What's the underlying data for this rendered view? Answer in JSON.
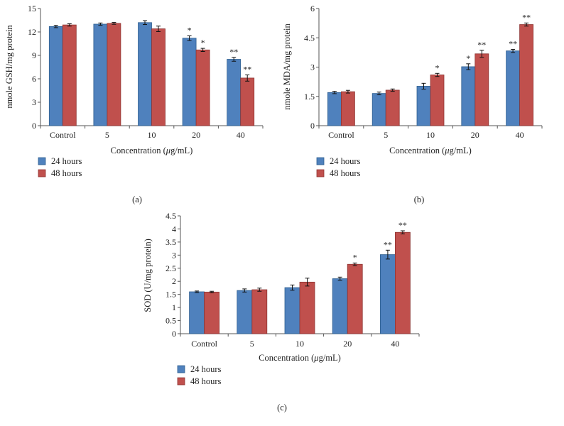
{
  "colors": {
    "s24": "#4f81bd",
    "s48": "#c0504d",
    "s24_edge": "#2f5f8f",
    "s48_edge": "#8e3331",
    "axis": "#555555"
  },
  "chart_data": [
    {
      "id": "a",
      "type": "bar",
      "panel_label": "(a)",
      "categories": [
        "Control",
        "5",
        "10",
        "20",
        "40"
      ],
      "xlabel_pre": "Concentration (",
      "xlabel_mu": "μ",
      "xlabel_post": "g/mL)",
      "ylabel": "nmole GSH/mg protein",
      "ylim": [
        0,
        15
      ],
      "yticks": [
        0,
        3,
        6,
        9,
        12,
        15
      ],
      "ytick_labels": [
        "0",
        "3",
        "6",
        "9",
        "12",
        "15"
      ],
      "series": [
        {
          "name": "24 hours",
          "values": [
            12.7,
            13.0,
            13.2,
            11.2,
            8.5
          ],
          "errors": [
            0.15,
            0.15,
            0.25,
            0.3,
            0.25
          ],
          "stars": [
            "",
            "",
            "",
            "*",
            "**"
          ]
        },
        {
          "name": "48 hours",
          "values": [
            12.9,
            13.1,
            12.4,
            9.7,
            6.1
          ],
          "errors": [
            0.15,
            0.12,
            0.35,
            0.2,
            0.4
          ],
          "stars": [
            "",
            "",
            "",
            "*",
            "**"
          ]
        }
      ]
    },
    {
      "id": "b",
      "type": "bar",
      "panel_label": "(b)",
      "categories": [
        "Control",
        "5",
        "10",
        "20",
        "40"
      ],
      "xlabel_pre": "Concentration (",
      "xlabel_mu": "μ",
      "xlabel_post": "g/mL)",
      "ylabel": "nmole MDA/mg protein",
      "ylim": [
        0,
        6
      ],
      "yticks": [
        0,
        1.5,
        3,
        4.5,
        6
      ],
      "ytick_labels": [
        "0",
        "1.5",
        "3",
        "4.5",
        "6"
      ],
      "series": [
        {
          "name": "24 hours",
          "values": [
            1.7,
            1.65,
            2.02,
            3.02,
            3.83
          ],
          "errors": [
            0.06,
            0.07,
            0.15,
            0.15,
            0.08
          ],
          "stars": [
            "",
            "",
            "",
            "*",
            "**"
          ]
        },
        {
          "name": "48 hours",
          "values": [
            1.74,
            1.82,
            2.6,
            3.68,
            5.18
          ],
          "errors": [
            0.07,
            0.06,
            0.08,
            0.18,
            0.08
          ],
          "stars": [
            "",
            "",
            "*",
            "**",
            "**"
          ]
        }
      ]
    },
    {
      "id": "c",
      "type": "bar",
      "panel_label": "(c)",
      "categories": [
        "Control",
        "5",
        "10",
        "20",
        "40"
      ],
      "xlabel_pre": "Concentration (",
      "xlabel_mu": "μ",
      "xlabel_post": "g/mL)",
      "ylabel": "SOD (U/mg protein)",
      "ylim": [
        0,
        4.5
      ],
      "yticks": [
        0,
        0.5,
        1,
        1.5,
        2,
        2.5,
        3,
        3.5,
        4,
        4.5
      ],
      "ytick_labels": [
        "0",
        "0.5",
        "1",
        "1.5",
        "2",
        "2.5",
        "3",
        "3.5",
        "4",
        "4.5"
      ],
      "series": [
        {
          "name": "24 hours",
          "values": [
            1.6,
            1.65,
            1.76,
            2.1,
            3.02
          ],
          "errors": [
            0.03,
            0.06,
            0.1,
            0.06,
            0.17
          ],
          "stars": [
            "",
            "",
            "",
            "",
            "**"
          ]
        },
        {
          "name": "48 hours",
          "values": [
            1.59,
            1.68,
            1.97,
            2.65,
            3.87
          ],
          "errors": [
            0.03,
            0.06,
            0.15,
            0.05,
            0.06
          ],
          "stars": [
            "",
            "",
            "",
            "*",
            "**"
          ]
        }
      ]
    }
  ]
}
